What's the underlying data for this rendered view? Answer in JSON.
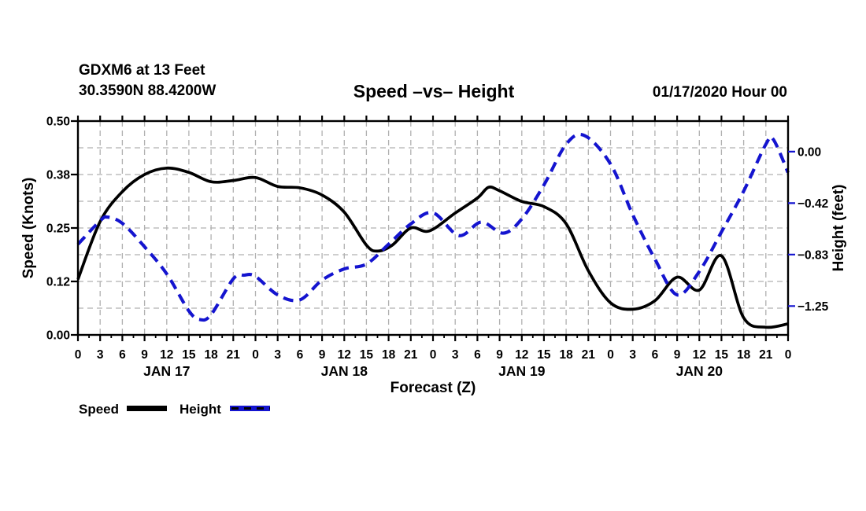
{
  "header": {
    "station_line1": "GDXM6 at 13 Feet",
    "station_line2": "30.3590N 88.4200W",
    "title": "Speed –vs– Height",
    "datetime": "01/17/2020 Hour 00"
  },
  "legend": {
    "speed_label": "Speed",
    "height_label": "Height"
  },
  "colors": {
    "speed_line": "#000000",
    "height_line": "#1414cf",
    "grid": "#b0b0b0",
    "right_tick": "#1414cf"
  },
  "chart_data": {
    "type": "line",
    "title": "Speed –vs– Height",
    "xlabel": "Forecast (Z)",
    "x_unit_hours_from": "01/17/2020 00Z",
    "xlim": [
      0,
      96
    ],
    "x_major_tick_step_hours": 3,
    "x_minor_tick_step_hours": 1.5,
    "grid": true,
    "x_tick_labels": [
      "0",
      "3",
      "6",
      "9",
      "12",
      "15",
      "18",
      "21",
      "0",
      "3",
      "6",
      "9",
      "12",
      "15",
      "18",
      "21",
      "0",
      "3",
      "6",
      "9",
      "12",
      "15",
      "18",
      "21",
      "0",
      "3",
      "6",
      "9",
      "12",
      "15",
      "18",
      "21",
      "0"
    ],
    "day_labels": [
      {
        "label": "JAN 17",
        "t": 12
      },
      {
        "label": "JAN 18",
        "t": 36
      },
      {
        "label": "JAN 19",
        "t": 60
      },
      {
        "label": "JAN 20",
        "t": 84
      }
    ],
    "left_axis": {
      "label": "Speed (Knots)",
      "min": 0.0,
      "max": 0.5,
      "tick_values": [
        0.0,
        0.125,
        0.25,
        0.375,
        0.5
      ],
      "tick_labels": [
        "0.00",
        "0.12",
        "0.25",
        "0.38",
        "0.50"
      ],
      "minor_grid_step": 0.0625
    },
    "right_axis": {
      "label": "Height (feet)",
      "min": -1.484,
      "max": 0.248,
      "tick_values": [
        0.0,
        -0.4167,
        -0.8333,
        -1.25
      ],
      "tick_labels": [
        "0.00",
        "−0.42",
        "−0.83",
        "−1.25"
      ]
    },
    "series": [
      {
        "name": "Speed",
        "axis": "left",
        "style": "solid",
        "points": [
          [
            0,
            0.13
          ],
          [
            3,
            0.265
          ],
          [
            6,
            0.335
          ],
          [
            9,
            0.375
          ],
          [
            12,
            0.39
          ],
          [
            15,
            0.38
          ],
          [
            18,
            0.358
          ],
          [
            21,
            0.361
          ],
          [
            24,
            0.368
          ],
          [
            27,
            0.347
          ],
          [
            30,
            0.344
          ],
          [
            33,
            0.327
          ],
          [
            36,
            0.287
          ],
          [
            39,
            0.21
          ],
          [
            40.5,
            0.196
          ],
          [
            42.5,
            0.21
          ],
          [
            45,
            0.25
          ],
          [
            47.5,
            0.243
          ],
          [
            51,
            0.285
          ],
          [
            54,
            0.32
          ],
          [
            55.5,
            0.345
          ],
          [
            57,
            0.337
          ],
          [
            60,
            0.312
          ],
          [
            63,
            0.3
          ],
          [
            66,
            0.26
          ],
          [
            69,
            0.15
          ],
          [
            72,
            0.075
          ],
          [
            75,
            0.06
          ],
          [
            78,
            0.08
          ],
          [
            81,
            0.135
          ],
          [
            84,
            0.105
          ],
          [
            87,
            0.185
          ],
          [
            90,
            0.04
          ],
          [
            93,
            0.018
          ],
          [
            96,
            0.026
          ]
        ]
      },
      {
        "name": "Height",
        "axis": "right",
        "style": "dashed",
        "points": [
          [
            0,
            -0.75
          ],
          [
            3,
            -0.56
          ],
          [
            4,
            -0.53
          ],
          [
            6,
            -0.58
          ],
          [
            9,
            -0.77
          ],
          [
            12,
            -0.99
          ],
          [
            15,
            -1.29
          ],
          [
            16.5,
            -1.36
          ],
          [
            18,
            -1.32
          ],
          [
            21,
            -1.03
          ],
          [
            22.5,
            -1.0
          ],
          [
            24,
            -1.01
          ],
          [
            27,
            -1.16
          ],
          [
            30,
            -1.2
          ],
          [
            33,
            -1.04
          ],
          [
            36,
            -0.95
          ],
          [
            39,
            -0.91
          ],
          [
            42,
            -0.75
          ],
          [
            45,
            -0.585
          ],
          [
            48,
            -0.495
          ],
          [
            51.5,
            -0.68
          ],
          [
            54.5,
            -0.57
          ],
          [
            57.5,
            -0.66
          ],
          [
            60,
            -0.545
          ],
          [
            63,
            -0.27
          ],
          [
            66,
            0.06
          ],
          [
            68.5,
            0.13
          ],
          [
            72,
            -0.1
          ],
          [
            75,
            -0.51
          ],
          [
            78,
            -0.87
          ],
          [
            81,
            -1.16
          ],
          [
            84,
            -0.97
          ],
          [
            87,
            -0.65
          ],
          [
            90,
            -0.32
          ],
          [
            93,
            0.06
          ],
          [
            94,
            0.1
          ],
          [
            96,
            -0.17
          ]
        ]
      }
    ]
  }
}
